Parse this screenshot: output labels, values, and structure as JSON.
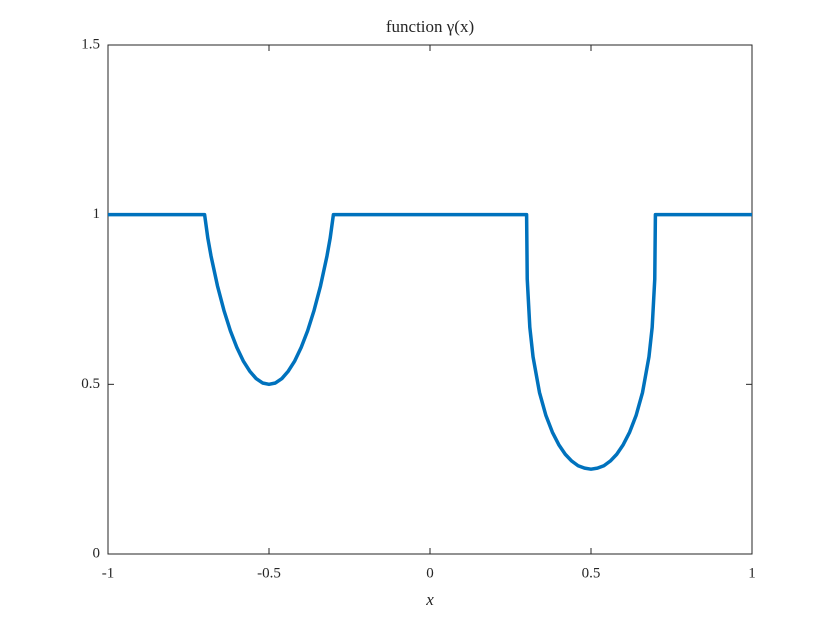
{
  "chart_data": {
    "type": "line",
    "title": "function γ(x)",
    "xlabel": "x",
    "x": [
      -1,
      -0.7,
      -0.69,
      -0.68,
      -0.66,
      -0.64,
      -0.62,
      -0.6,
      -0.58,
      -0.56,
      -0.54,
      -0.52,
      -0.5,
      -0.48,
      -0.46,
      -0.44,
      -0.42,
      -0.4,
      -0.38,
      -0.36,
      -0.34,
      -0.32,
      -0.31,
      -0.3,
      0.3,
      0.302,
      0.31,
      0.32,
      0.34,
      0.36,
      0.38,
      0.4,
      0.42,
      0.44,
      0.46,
      0.48,
      0.5,
      0.52,
      0.54,
      0.56,
      0.58,
      0.6,
      0.62,
      0.64,
      0.66,
      0.68,
      0.69,
      0.698,
      0.7,
      1
    ],
    "values": [
      1,
      1,
      0.931,
      0.878,
      0.79,
      0.718,
      0.658,
      0.609,
      0.569,
      0.539,
      0.517,
      0.504,
      0.5,
      0.504,
      0.517,
      0.539,
      0.569,
      0.609,
      0.658,
      0.718,
      0.79,
      0.878,
      0.931,
      1,
      1,
      0.81,
      0.668,
      0.581,
      0.476,
      0.408,
      0.359,
      0.322,
      0.294,
      0.274,
      0.26,
      0.253,
      0.25,
      0.253,
      0.26,
      0.274,
      0.294,
      0.322,
      0.359,
      0.408,
      0.476,
      0.581,
      0.668,
      0.81,
      1,
      1
    ],
    "color": "#0072bd",
    "xlim": [
      -1,
      1
    ],
    "xticks": [
      -1,
      -0.5,
      0,
      0.5,
      1
    ],
    "ylim": [
      0,
      1.5
    ],
    "yticks": [
      0,
      0.5,
      1,
      1.5
    ]
  }
}
